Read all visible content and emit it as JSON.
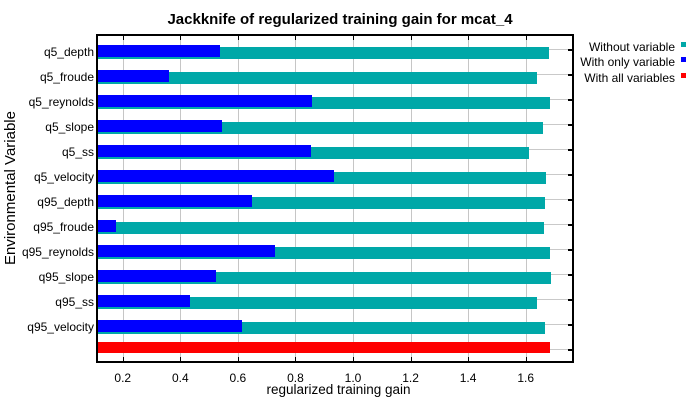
{
  "chart_data": {
    "type": "bar",
    "orientation": "horizontal",
    "title": "Jackknife of regularized training gain for mcat_4",
    "xlabel": "regularized training gain",
    "ylabel": "Environmental Variable",
    "categories": [
      "q5_depth",
      "q5_froude",
      "q5_reynolds",
      "q5_slope",
      "q5_ss",
      "q5_velocity",
      "q95_depth",
      "q95_froude",
      "q95_reynolds",
      "q95_slope",
      "q95_ss",
      "q95_velocity"
    ],
    "series": [
      {
        "name": "Without variable",
        "color": "#00a8a8",
        "values": [
          1.68,
          1.64,
          1.685,
          1.661,
          1.611,
          1.671,
          1.668,
          1.665,
          1.683,
          1.689,
          1.641,
          1.667
        ]
      },
      {
        "name": "With only variable",
        "color": "#0000ff",
        "values": [
          0.537,
          0.359,
          0.857,
          0.545,
          0.854,
          0.934,
          0.649,
          0.178,
          0.73,
          0.525,
          0.435,
          0.613
        ]
      }
    ],
    "with_all_variables": {
      "name": "With all variables",
      "color": "#ff0000",
      "value": 1.683
    },
    "x_tick_values": [
      0.2,
      0.4,
      0.6,
      0.8,
      1.0,
      1.2,
      1.4,
      1.6
    ],
    "x_tick_labels": [
      "0.2",
      "0.4",
      "0.6",
      "0.8",
      "1.0",
      "1.2",
      "1.4",
      "1.6"
    ],
    "xlim": [
      0.114,
      1.761
    ],
    "grid": true,
    "legend_position": "top-right",
    "legend": [
      {
        "label": "Without variable",
        "color": "#00a8a8"
      },
      {
        "label": "With only variable",
        "color": "#0000ff"
      },
      {
        "label": "With all variables",
        "color": "#ff0000"
      }
    ]
  }
}
